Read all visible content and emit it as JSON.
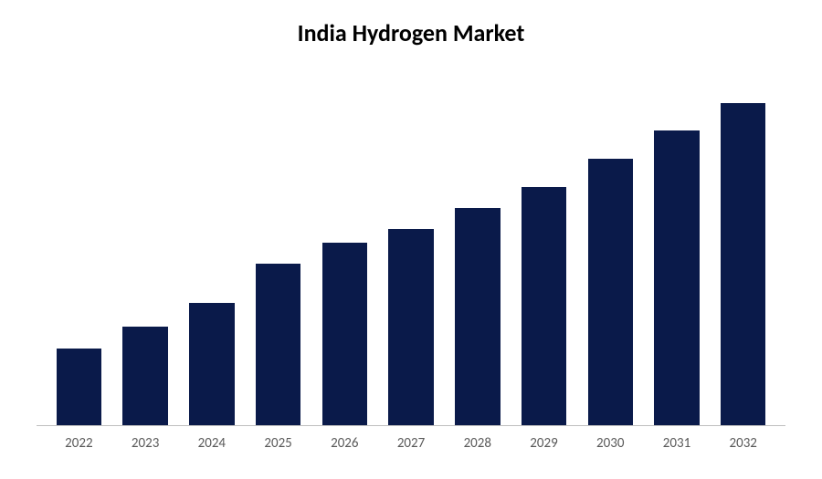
{
  "chart": {
    "type": "bar",
    "title": "India Hydrogen Market",
    "title_fontsize": 26,
    "title_color": "#000000",
    "title_weight": "bold",
    "categories": [
      "2022",
      "2023",
      "2024",
      "2025",
      "2026",
      "2027",
      "2028",
      "2029",
      "2030",
      "2031",
      "2032"
    ],
    "values": [
      22,
      28,
      35,
      46,
      52,
      56,
      62,
      68,
      76,
      84,
      92
    ],
    "bar_color": "#0a1a4a",
    "background_color": "#ffffff",
    "axis_color": "#bfbfbf",
    "ylim": [
      0,
      100
    ],
    "bar_width": 0.68,
    "label_fontsize": 15,
    "label_color": "#595959",
    "grid": false
  }
}
